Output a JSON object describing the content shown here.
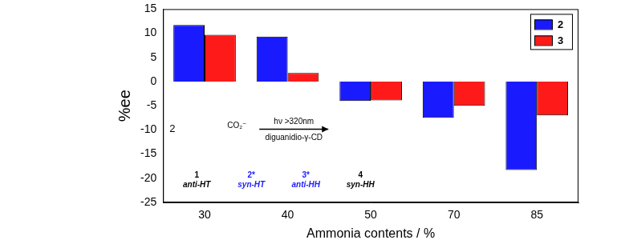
{
  "chart_data": {
    "type": "bar",
    "categories": [
      "30",
      "40",
      "50",
      "70",
      "85"
    ],
    "series": [
      {
        "name": "2",
        "color": "#1a1aff",
        "values": [
          11.7,
          9.3,
          -4.0,
          -7.5,
          -18.3
        ]
      },
      {
        "name": "3",
        "color": "#ff1a1a",
        "values": [
          9.7,
          1.8,
          -3.9,
          -5.0,
          -7.0
        ]
      }
    ],
    "x_label": "Ammonia contents / %",
    "y_label": "%ee",
    "ylim": [
      -25,
      15
    ],
    "yticks": [
      -25,
      -20,
      -15,
      -10,
      -5,
      0,
      5,
      10,
      15
    ],
    "grid": false,
    "legend": "upper right",
    "annotations": {
      "reactant_count": "2",
      "reactant_group": "CO₂⁻",
      "condition_above": "hν >320nm",
      "condition_below": "diguanidio-γ-CD",
      "products": [
        {
          "number": "1",
          "name": "anti-HT",
          "color": "#000000"
        },
        {
          "number": "2*",
          "name": "syn-HT",
          "color": "#1a1aff"
        },
        {
          "number": "3*",
          "name": "anti-HH",
          "color": "#1a1aff"
        },
        {
          "number": "4",
          "name": "syn-HH",
          "color": "#000000"
        }
      ]
    }
  }
}
